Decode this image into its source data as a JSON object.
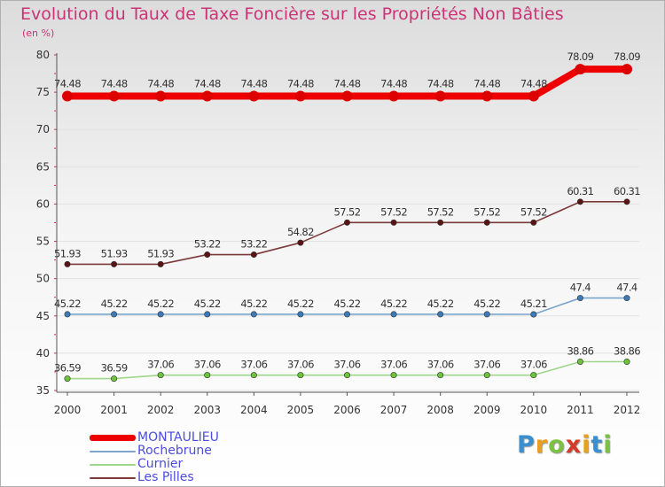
{
  "chart_data": {
    "type": "line",
    "title": "Evolution du Taux de Taxe Foncière sur les Propriétés Non Bâties",
    "ylabel": "(en %)",
    "xlabel": "",
    "categories": [
      "2000",
      "2001",
      "2002",
      "2003",
      "2004",
      "2005",
      "2006",
      "2007",
      "2008",
      "2009",
      "2010",
      "2011",
      "2012"
    ],
    "ylim": [
      35,
      80
    ],
    "yticks": [
      "35",
      "40",
      "45",
      "50",
      "55",
      "60",
      "65",
      "70",
      "75",
      "80"
    ],
    "grid": "horizontal",
    "series": [
      {
        "name": "MONTAULIEU",
        "color": "#ee0000",
        "point_color": "#dd0000",
        "bold": true,
        "values": [
          74.48,
          74.48,
          74.48,
          74.48,
          74.48,
          74.48,
          74.48,
          74.48,
          74.48,
          74.48,
          74.48,
          78.09,
          78.09
        ],
        "labels": [
          "74.48",
          "74.48",
          "74.48",
          "74.48",
          "74.48",
          "74.48",
          "74.48",
          "74.48",
          "74.48",
          "74.48",
          "74.48",
          "78.09",
          "78.09"
        ]
      },
      {
        "name": "Rochebrune",
        "color": "#7aa6cc",
        "point_color": "#3d7ab8",
        "bold": false,
        "values": [
          45.22,
          45.22,
          45.22,
          45.22,
          45.22,
          45.22,
          45.22,
          45.22,
          45.22,
          45.22,
          45.21,
          47.4,
          47.4
        ],
        "labels": [
          "45.22",
          "45.22",
          "45.22",
          "45.22",
          "45.22",
          "45.22",
          "45.22",
          "45.22",
          "45.22",
          "45.22",
          "45.21",
          "47.4",
          "47.4"
        ]
      },
      {
        "name": "Curnier",
        "color": "#9ed68a",
        "point_color": "#6cc43a",
        "bold": false,
        "values": [
          36.59,
          36.59,
          37.06,
          37.06,
          37.06,
          37.06,
          37.06,
          37.06,
          37.06,
          37.06,
          37.06,
          38.86,
          38.86
        ],
        "labels": [
          "36.59",
          "36.59",
          "37.06",
          "37.06",
          "37.06",
          "37.06",
          "37.06",
          "37.06",
          "37.06",
          "37.06",
          "37.06",
          "38.86",
          "38.86"
        ]
      },
      {
        "name": "Les Pilles",
        "color": "#7a3a3a",
        "point_color": "#5a1414",
        "bold": false,
        "values": [
          51.93,
          51.93,
          51.93,
          53.22,
          53.22,
          54.82,
          57.52,
          57.52,
          57.52,
          57.52,
          57.52,
          60.31,
          60.31
        ],
        "labels": [
          "51.93",
          "51.93",
          "51.93",
          "53.22",
          "53.22",
          "54.82",
          "57.52",
          "57.52",
          "57.52",
          "57.52",
          "57.52",
          "60.31",
          "60.31"
        ]
      }
    ]
  },
  "legend": {
    "items": [
      {
        "label": "MONTAULIEU",
        "color": "#ee0000",
        "bold": true
      },
      {
        "label": "Rochebrune",
        "color": "#7aa6cc",
        "bold": false
      },
      {
        "label": "Curnier",
        "color": "#9ed68a",
        "bold": false
      },
      {
        "label": "Les Pilles",
        "color": "#7a3a3a",
        "bold": false
      }
    ]
  },
  "brand": {
    "letters": [
      "P",
      "r",
      "o",
      "x",
      "i",
      "t",
      "i"
    ],
    "colors": [
      "#3a8fd0",
      "#e8a020",
      "#7cc242",
      "#d23a2a",
      "#e8a020",
      "#3a8fd0",
      "#7cc242"
    ]
  }
}
